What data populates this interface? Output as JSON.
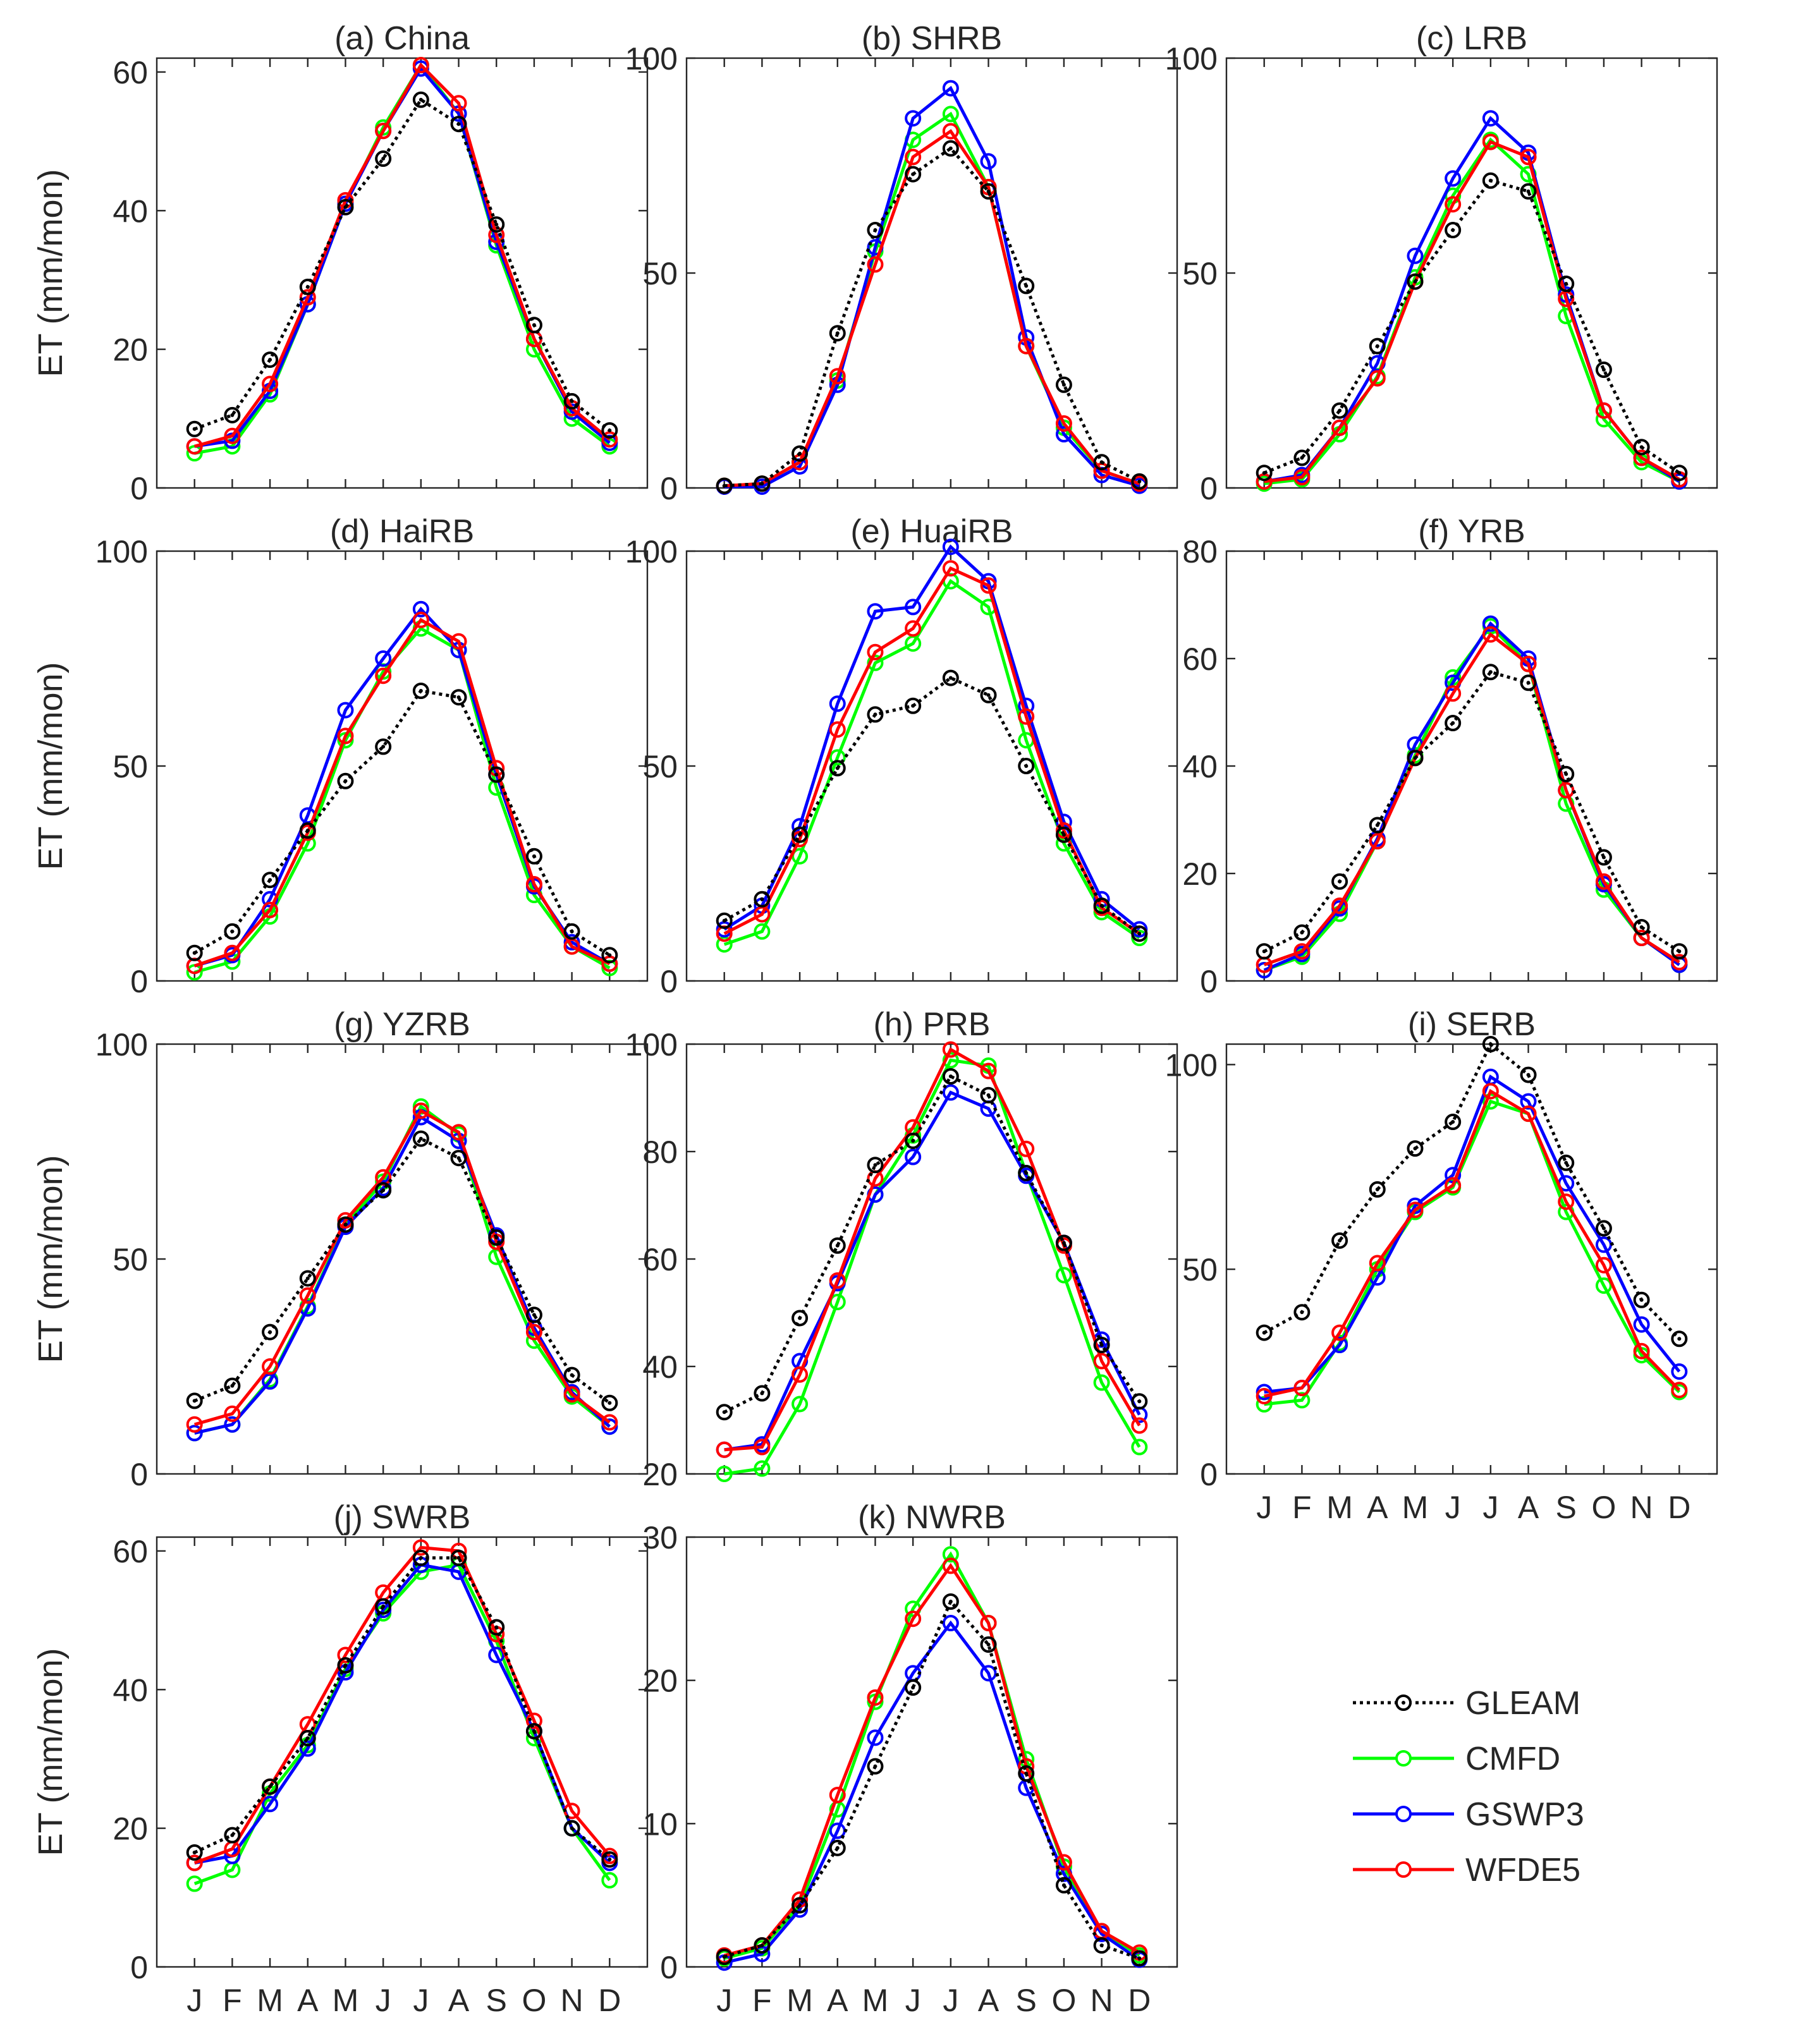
{
  "figure": {
    "months": [
      "J",
      "F",
      "M",
      "A",
      "M",
      "J",
      "J",
      "A",
      "S",
      "O",
      "N",
      "D"
    ],
    "ylabel": "ET (mm/mon)"
  },
  "legend": [
    {
      "name": "GLEAM",
      "color": "#000000",
      "dashed": true
    },
    {
      "name": "CMFD",
      "color": "#00ff00",
      "dashed": false
    },
    {
      "name": "GSWP3",
      "color": "#0000ff",
      "dashed": false
    },
    {
      "name": "WFDE5",
      "color": "#ff0000",
      "dashed": false
    }
  ],
  "chart_data": [
    {
      "type": "line",
      "title": "(a) China",
      "ylabel": "ET (mm/mon)",
      "ylim": [
        0,
        62
      ],
      "yticks": [
        0,
        20,
        40,
        60
      ],
      "categories": [
        "J",
        "F",
        "M",
        "A",
        "M",
        "J",
        "J",
        "A",
        "S",
        "O",
        "N",
        "D"
      ],
      "series": [
        {
          "name": "GLEAM",
          "values": [
            8.5,
            10.5,
            18.5,
            29,
            40.5,
            47.5,
            56,
            52.5,
            38,
            23.5,
            12.5,
            8.3
          ]
        },
        {
          "name": "CMFD",
          "values": [
            5,
            6,
            13.5,
            26.5,
            41,
            52,
            61,
            54,
            35,
            20,
            10,
            6
          ]
        },
        {
          "name": "GSWP3",
          "values": [
            6,
            6.8,
            14,
            26.5,
            41,
            51.5,
            60.5,
            54,
            35.5,
            21.5,
            11,
            6.5
          ]
        },
        {
          "name": "WFDE5",
          "values": [
            6,
            7.5,
            15,
            27.5,
            41.5,
            51.5,
            61,
            55.5,
            36.5,
            21.5,
            11.5,
            7
          ]
        }
      ]
    },
    {
      "type": "line",
      "title": "(b) SHRB",
      "ylabel": "",
      "ylim": [
        0,
        100
      ],
      "yticks": [
        0,
        50,
        100
      ],
      "categories": [
        "J",
        "F",
        "M",
        "A",
        "M",
        "J",
        "J",
        "A",
        "S",
        "O",
        "N",
        "D"
      ],
      "series": [
        {
          "name": "GLEAM",
          "values": [
            0.5,
            1,
            8,
            36,
            60,
            73,
            79,
            69,
            47,
            24,
            6,
            1.5
          ]
        },
        {
          "name": "CMFD",
          "values": [
            0.5,
            1,
            6,
            25,
            55,
            81,
            87,
            70,
            33,
            14,
            4,
            1
          ]
        },
        {
          "name": "GSWP3",
          "values": [
            0.3,
            0.3,
            5,
            24,
            56,
            86,
            93,
            76,
            35,
            12.5,
            3,
            0.5
          ]
        },
        {
          "name": "WFDE5",
          "values": [
            0.5,
            1,
            6,
            26,
            52,
            77,
            83,
            70,
            33,
            15,
            4,
            1
          ]
        }
      ]
    },
    {
      "type": "line",
      "title": "(c) LRB",
      "ylabel": "",
      "ylim": [
        0,
        100
      ],
      "yticks": [
        0,
        50,
        100
      ],
      "categories": [
        "J",
        "F",
        "M",
        "A",
        "M",
        "J",
        "J",
        "A",
        "S",
        "O",
        "N",
        "D"
      ],
      "series": [
        {
          "name": "GLEAM",
          "values": [
            3.5,
            7,
            18,
            33,
            48,
            60,
            71.5,
            69,
            47.5,
            27.5,
            9.5,
            3.5
          ]
        },
        {
          "name": "CMFD",
          "values": [
            1,
            2,
            12.5,
            26,
            49,
            68,
            81,
            73,
            40,
            16,
            6,
            1.5
          ]
        },
        {
          "name": "GSWP3",
          "values": [
            1.5,
            3,
            14,
            29,
            54,
            72,
            86,
            78,
            45,
            18,
            7,
            1.5
          ]
        },
        {
          "name": "WFDE5",
          "values": [
            1.5,
            2.5,
            14,
            25.5,
            48,
            66,
            80.5,
            77,
            44,
            18,
            7,
            2
          ]
        }
      ]
    },
    {
      "type": "line",
      "title": "(d) HaiRB",
      "ylabel": "ET (mm/mon)",
      "ylim": [
        0,
        100
      ],
      "yticks": [
        0,
        50,
        100
      ],
      "categories": [
        "J",
        "F",
        "M",
        "A",
        "M",
        "J",
        "J",
        "A",
        "S",
        "O",
        "N",
        "D"
      ],
      "series": [
        {
          "name": "GLEAM",
          "values": [
            6.5,
            11.5,
            23.5,
            35,
            46.5,
            54.5,
            67.5,
            66,
            48,
            29,
            11.5,
            6
          ]
        },
        {
          "name": "CMFD",
          "values": [
            2,
            4.5,
            15,
            32,
            56,
            72,
            82,
            77,
            45,
            20,
            8,
            3
          ]
        },
        {
          "name": "GSWP3",
          "values": [
            3.5,
            6,
            19,
            38.5,
            63,
            75,
            86.5,
            77,
            48,
            22,
            9,
            4
          ]
        },
        {
          "name": "WFDE5",
          "values": [
            3.5,
            6.5,
            16.5,
            34.5,
            57,
            71,
            84,
            79,
            49.5,
            22.5,
            8,
            4
          ]
        }
      ]
    },
    {
      "type": "line",
      "title": "(e) HuaiRB",
      "ylabel": "",
      "ylim": [
        0,
        100
      ],
      "yticks": [
        0,
        50,
        100
      ],
      "categories": [
        "J",
        "F",
        "M",
        "A",
        "M",
        "J",
        "J",
        "A",
        "S",
        "O",
        "N",
        "D"
      ],
      "series": [
        {
          "name": "GLEAM",
          "values": [
            14,
            19,
            34,
            49.5,
            62,
            64,
            70.5,
            66.5,
            50,
            34,
            17.5,
            11
          ]
        },
        {
          "name": "CMFD",
          "values": [
            8.5,
            11.5,
            29,
            52,
            74,
            78.5,
            93,
            87,
            56,
            32,
            16,
            10
          ]
        },
        {
          "name": "GSWP3",
          "values": [
            12,
            17.5,
            36,
            64.5,
            86,
            87,
            101,
            93,
            64,
            37,
            19,
            12
          ]
        },
        {
          "name": "WFDE5",
          "values": [
            11,
            15.5,
            33,
            58.5,
            76.5,
            82,
            96,
            92,
            61.5,
            35,
            17,
            11
          ]
        }
      ]
    },
    {
      "type": "line",
      "title": "(f) YRB",
      "ylabel": "",
      "ylim": [
        0,
        80
      ],
      "yticks": [
        0,
        20,
        40,
        60,
        80
      ],
      "categories": [
        "J",
        "F",
        "M",
        "A",
        "M",
        "J",
        "J",
        "A",
        "S",
        "O",
        "N",
        "D"
      ],
      "series": [
        {
          "name": "GLEAM",
          "values": [
            5.5,
            9,
            18.5,
            29,
            41.5,
            48,
            57.5,
            55.5,
            38.5,
            23,
            10,
            5.5
          ]
        },
        {
          "name": "CMFD",
          "values": [
            2,
            4.5,
            12.5,
            26,
            42,
            56.5,
            66,
            59,
            33,
            17,
            8,
            3
          ]
        },
        {
          "name": "GSWP3",
          "values": [
            2,
            5,
            13.5,
            26.5,
            44,
            55.5,
            66.5,
            60,
            35.5,
            18,
            8,
            3
          ]
        },
        {
          "name": "WFDE5",
          "values": [
            3,
            5.5,
            14,
            26,
            41.5,
            53.5,
            64.5,
            59,
            35.5,
            18.5,
            8,
            3.5
          ]
        }
      ]
    },
    {
      "type": "line",
      "title": "(g) YZRB",
      "ylabel": "ET (mm/mon)",
      "ylim": [
        0,
        100
      ],
      "yticks": [
        0,
        50,
        100
      ],
      "categories": [
        "J",
        "F",
        "M",
        "A",
        "M",
        "J",
        "J",
        "A",
        "S",
        "O",
        "N",
        "D"
      ],
      "series": [
        {
          "name": "GLEAM",
          "values": [
            17,
            20.5,
            33,
            45.5,
            58,
            66,
            78,
            73.5,
            55,
            37,
            23,
            16.5
          ]
        },
        {
          "name": "CMFD",
          "values": [
            9.5,
            11.5,
            22,
            39,
            58,
            68,
            85.5,
            79,
            50.5,
            31,
            18,
            11
          ]
        },
        {
          "name": "GSWP3",
          "values": [
            9.5,
            11.5,
            21.5,
            38.5,
            57.5,
            66.5,
            83,
            77.5,
            55.5,
            34,
            19,
            11
          ]
        },
        {
          "name": "WFDE5",
          "values": [
            11.5,
            14,
            25,
            41.5,
            59,
            69,
            84.5,
            79.5,
            54,
            33,
            18.5,
            12
          ]
        }
      ]
    },
    {
      "type": "line",
      "title": "(h) PRB",
      "ylabel": "",
      "ylim": [
        20,
        100
      ],
      "yticks": [
        20,
        40,
        60,
        80,
        100
      ],
      "categories": [
        "J",
        "F",
        "M",
        "A",
        "M",
        "J",
        "J",
        "A",
        "S",
        "O",
        "N",
        "D"
      ],
      "series": [
        {
          "name": "GLEAM",
          "values": [
            31.5,
            35,
            49,
            62.5,
            77.5,
            82,
            94,
            90.5,
            76,
            63,
            44,
            33.5
          ]
        },
        {
          "name": "CMFD",
          "values": [
            20,
            21,
            33,
            52,
            72,
            83,
            97,
            96,
            76,
            57,
            37,
            25
          ]
        },
        {
          "name": "GSWP3",
          "values": [
            24.5,
            25.5,
            41,
            55.5,
            72,
            79,
            91,
            88,
            75.5,
            63,
            45,
            31
          ]
        },
        {
          "name": "WFDE5",
          "values": [
            24.5,
            25,
            38.5,
            56,
            75,
            84.5,
            99,
            95,
            80.5,
            62.5,
            41,
            29
          ]
        }
      ]
    },
    {
      "type": "line",
      "title": "(i) SERB",
      "ylabel": "",
      "ylim": [
        0,
        105
      ],
      "yticks": [
        0,
        50,
        100
      ],
      "categories": [
        "J",
        "F",
        "M",
        "A",
        "M",
        "J",
        "J",
        "A",
        "S",
        "O",
        "N",
        "D"
      ],
      "series": [
        {
          "name": "GLEAM",
          "values": [
            34.5,
            39.5,
            57,
            69.5,
            79.5,
            86,
            105,
            97.5,
            76,
            60,
            42.5,
            33
          ]
        },
        {
          "name": "CMFD",
          "values": [
            17,
            18,
            32,
            50,
            64,
            70,
            91,
            88,
            64,
            46,
            29,
            20
          ]
        },
        {
          "name": "GSWP3",
          "values": [
            20,
            21,
            31.5,
            48,
            65.5,
            73,
            97,
            91,
            71,
            56,
            36.5,
            25
          ]
        },
        {
          "name": "WFDE5",
          "values": [
            19,
            21,
            34.5,
            51.5,
            64.5,
            70.5,
            93.5,
            88,
            66.5,
            51,
            30,
            20.5
          ]
        }
      ]
    },
    {
      "type": "line",
      "title": "(j) SWRB",
      "ylabel": "ET (mm/mon)",
      "ylim": [
        0,
        62
      ],
      "yticks": [
        0,
        20,
        40,
        60
      ],
      "categories": [
        "J",
        "F",
        "M",
        "A",
        "M",
        "J",
        "J",
        "A",
        "S",
        "O",
        "N",
        "D"
      ],
      "series": [
        {
          "name": "GLEAM",
          "values": [
            16.5,
            19,
            26,
            33,
            43.5,
            52,
            59,
            59,
            49,
            34,
            20,
            15.5
          ]
        },
        {
          "name": "CMFD",
          "values": [
            12,
            14,
            25,
            32,
            43,
            51,
            57,
            58,
            47,
            33,
            20,
            12.5
          ]
        },
        {
          "name": "GSWP3",
          "values": [
            15,
            16,
            23.5,
            31.5,
            42.5,
            51.5,
            58,
            57,
            45,
            34,
            20,
            15
          ]
        },
        {
          "name": "WFDE5",
          "values": [
            15,
            17,
            26,
            35,
            45,
            54,
            60.5,
            60,
            48,
            35.5,
            22.5,
            16
          ]
        }
      ]
    },
    {
      "type": "line",
      "title": "(k) NWRB",
      "ylabel": "",
      "ylim": [
        0,
        30
      ],
      "yticks": [
        0,
        10,
        20,
        30
      ],
      "categories": [
        "J",
        "F",
        "M",
        "A",
        "M",
        "J",
        "J",
        "A",
        "S",
        "O",
        "N",
        "D"
      ],
      "series": [
        {
          "name": "GLEAM",
          "values": [
            0.7,
            1.5,
            4.3,
            8.3,
            14,
            19.5,
            25.5,
            22.5,
            13.5,
            5.7,
            1.5,
            0.6
          ]
        },
        {
          "name": "CMFD",
          "values": [
            0.6,
            1.3,
            4.3,
            11,
            18.5,
            25,
            28.8,
            24,
            14.5,
            7,
            2.5,
            0.8
          ]
        },
        {
          "name": "GSWP3",
          "values": [
            0.3,
            0.9,
            4,
            9.5,
            16,
            20.5,
            24,
            20.5,
            12.5,
            6.5,
            2.3,
            0.5
          ]
        },
        {
          "name": "WFDE5",
          "values": [
            0.8,
            1.5,
            4.7,
            12,
            18.8,
            24.3,
            28,
            24,
            14,
            7.3,
            2.5,
            1
          ]
        }
      ]
    }
  ]
}
